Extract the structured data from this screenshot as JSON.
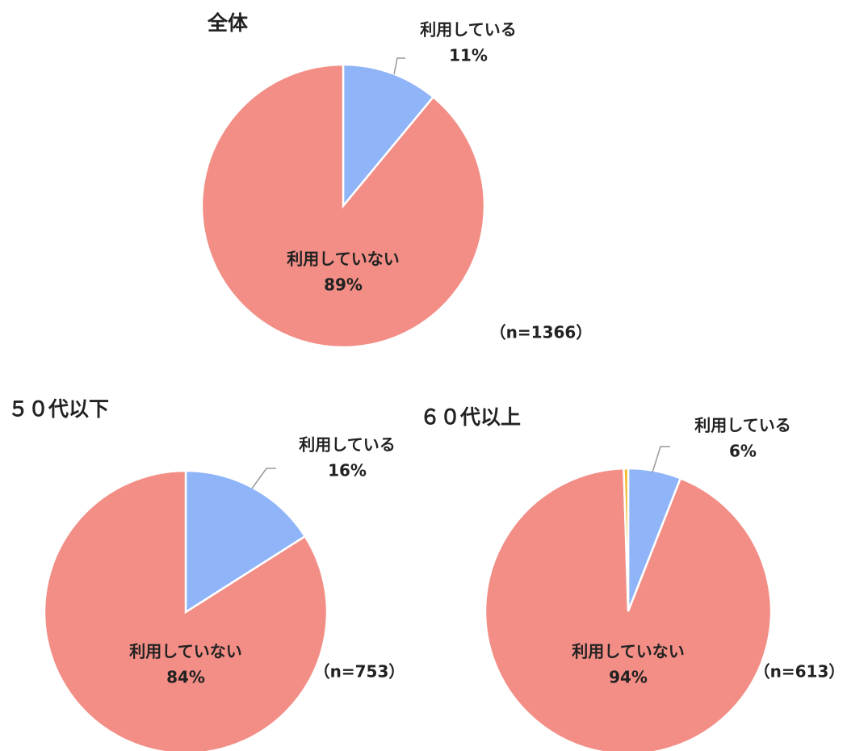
{
  "chart_data": [
    {
      "type": "pie",
      "title": "全体",
      "note": "（n=1366）",
      "categories": [
        "利用している",
        "利用していない"
      ],
      "values": [
        11,
        89
      ],
      "value_labels": [
        "11%",
        "89%"
      ],
      "colors": [
        "#8fb4f7",
        "#f28e86"
      ]
    },
    {
      "type": "pie",
      "title": "５０代以下",
      "note": "（n=753）",
      "categories": [
        "利用している",
        "利用していない"
      ],
      "values": [
        16,
        84
      ],
      "value_labels": [
        "16%",
        "84%"
      ],
      "colors": [
        "#8fb4f7",
        "#f28e86"
      ]
    },
    {
      "type": "pie",
      "title": "６０代以上",
      "note": "（n=613）",
      "categories": [
        "利用している",
        "利用していない",
        null
      ],
      "values": [
        6,
        94,
        0.5
      ],
      "value_labels": [
        "6%",
        "94%",
        null
      ],
      "colors": [
        "#8fb4f7",
        "#f28e86",
        "#f2b830"
      ]
    }
  ]
}
